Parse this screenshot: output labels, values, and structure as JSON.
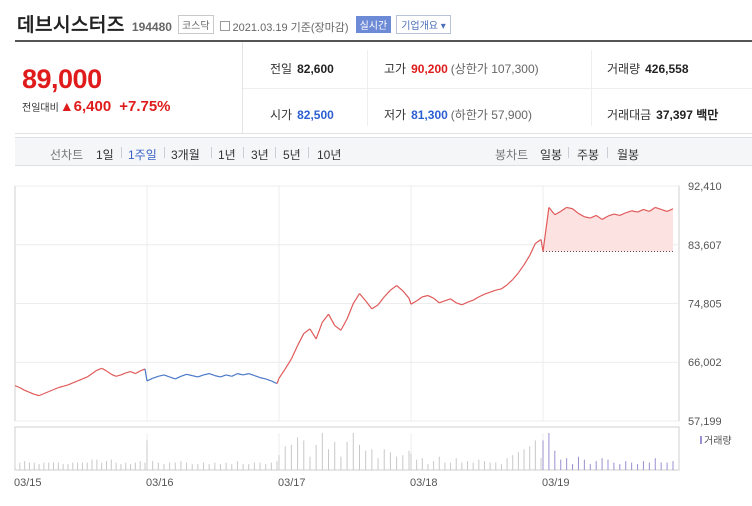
{
  "header": {
    "name": "데브시스터즈",
    "code": "194480",
    "market": "코스닥",
    "date": "2021.03.19 기준(장마감)",
    "realtime": "실시간",
    "company_info": "기업개요 ▾"
  },
  "quote": {
    "price": "89,000",
    "change_label": "전일대비",
    "change_arrow": "▲",
    "change_amount": "6,400",
    "change_pct": "+7.75%"
  },
  "stats": {
    "prev_label": "전일",
    "prev_value": "82,600",
    "high_label": "고가",
    "high_value": "90,200",
    "upper_limit": "(상한가 107,300)",
    "volume_label": "거래량",
    "volume_value": "426,558",
    "open_label": "시가",
    "open_value": "82,500",
    "low_label": "저가",
    "low_value": "81,300",
    "lower_limit": "(하한가 57,900)",
    "amount_label": "거래대금",
    "amount_value": "37,397 백만"
  },
  "toolbar": {
    "line_label": "선차트",
    "line_periods": [
      "1일",
      "1주일",
      "3개월",
      "1년",
      "3년",
      "5년",
      "10년"
    ],
    "active_period": "1주일",
    "candle_label": "봉차트",
    "candle_periods": [
      "일봉",
      "주봉",
      "월봉"
    ]
  },
  "colors": {
    "up": "#e01b1b",
    "down": "#2b5fd1",
    "line_up": "#e05a5a",
    "line_down": "#4a78c8",
    "fill": "#fde2e2",
    "volume": "#c8c8c8",
    "volume_today": "#9b8fd0"
  },
  "chart_data": {
    "type": "line",
    "x_ticks": [
      "03/15",
      "03/16",
      "03/17",
      "03/18",
      "03/19"
    ],
    "y_ticks": [
      57199,
      66002,
      74805,
      83607,
      92410
    ],
    "y_tick_labels": [
      "57,199",
      "66,002",
      "74,805",
      "83,607",
      "92,410"
    ],
    "ylim": [
      57199,
      92410
    ],
    "prev_close": 82600,
    "volume_legend": "거래량",
    "days": [
      {
        "label": "03/15",
        "values": [
          62500,
          62200,
          61800,
          61500,
          61200,
          61000,
          61300,
          61600,
          61900,
          62200,
          62400,
          62600,
          62900,
          63200,
          63500,
          63800,
          64300,
          64800,
          65100,
          64700,
          64200,
          63900,
          64100,
          64400,
          64600,
          64300,
          64700,
          65000
        ]
      },
      {
        "label": "03/16",
        "values": [
          63200,
          63600,
          63900,
          64100,
          63800,
          63500,
          63900,
          64200,
          64000,
          63800,
          64100,
          64300,
          64000,
          63800,
          64100,
          63900,
          64300,
          64100,
          64300,
          64000,
          63700,
          63500,
          63200,
          62800
        ]
      },
      {
        "label": "03/17",
        "values": [
          63600,
          65000,
          66500,
          68500,
          70300,
          71000,
          69500,
          72000,
          73200,
          71500,
          70800,
          72500,
          74800,
          76300,
          75200,
          74000,
          74600,
          75800,
          76800,
          77500,
          76700,
          75600
        ]
      },
      {
        "label": "03/18",
        "values": [
          74700,
          75200,
          75800,
          76000,
          75600,
          74900,
          75200,
          75500,
          74900,
          74600,
          75000,
          75300,
          75800,
          76200,
          76500,
          76800,
          77000,
          77600,
          78400,
          79400,
          80600,
          82000,
          83800,
          84400
        ]
      },
      {
        "label": "03/19",
        "values": [
          82600,
          89200,
          88100,
          88600,
          89200,
          89000,
          88300,
          87800,
          87600,
          88000,
          87400,
          87900,
          88200,
          88000,
          88400,
          88700,
          88500,
          88900,
          88600,
          89200,
          88900,
          88600,
          89000
        ]
      }
    ]
  }
}
